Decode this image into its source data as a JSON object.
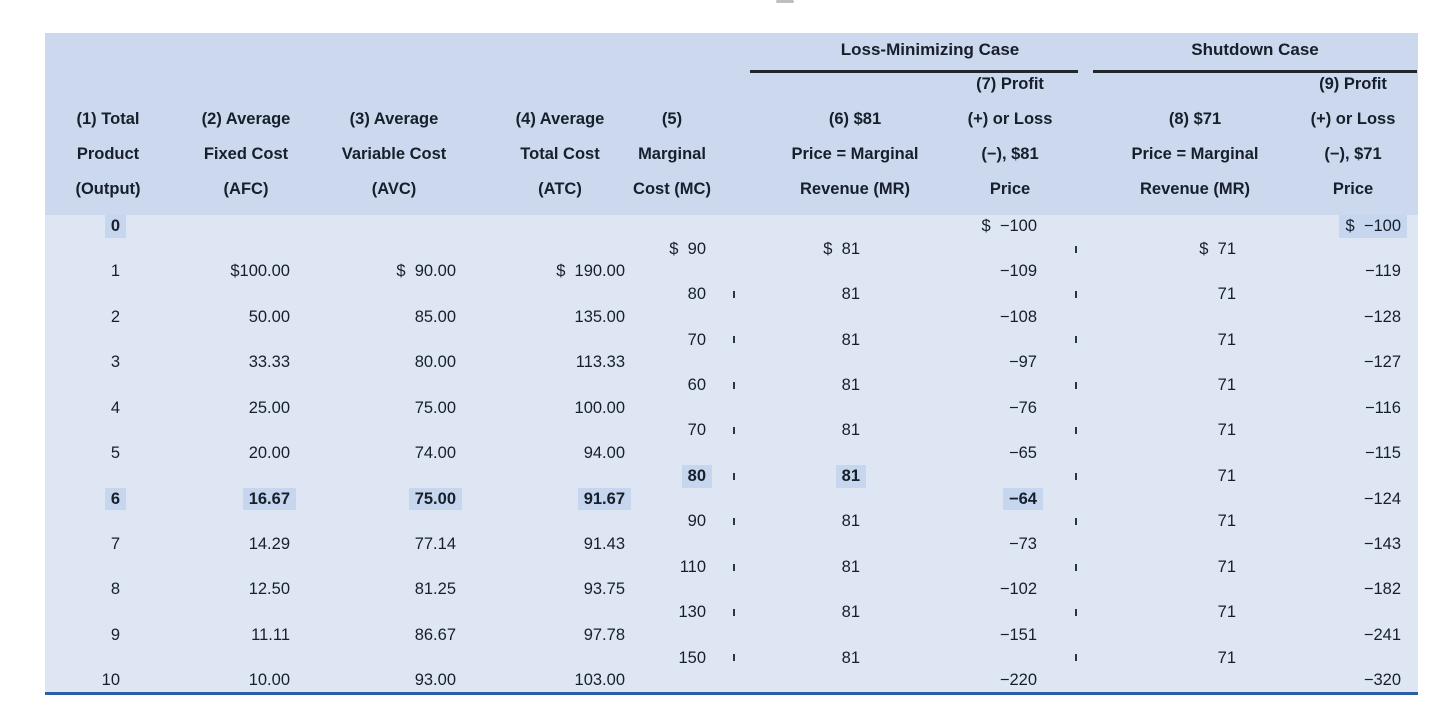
{
  "table": {
    "group_headers": [
      "Loss-Minimizing Case",
      "Shutdown Case"
    ],
    "column_headers": [
      [
        "(1) Total",
        "Product",
        "(Output)"
      ],
      [
        "(2) Average",
        "Fixed Cost",
        "(AFC)"
      ],
      [
        "(3) Average",
        "Variable Cost",
        "(AVC)"
      ],
      [
        "(4) Average",
        "Total Cost",
        "(ATC)"
      ],
      [
        "(5)",
        "Marginal",
        "Cost (MC)"
      ],
      [
        "(6) $81",
        "Price = Marginal",
        "Revenue (MR)"
      ],
      [
        "(7) Profit",
        "(+) or Loss",
        "(−), $81",
        "Price"
      ],
      [
        "(8) $71",
        "Price = Marginal",
        "Revenue (MR)"
      ],
      [
        "(9) Profit",
        "(+) or Loss",
        "(−), $71",
        "Price"
      ]
    ],
    "lines": [
      {
        "cells": {
          "1": {
            "t": "0",
            "b": true,
            "h": true
          },
          "7": {
            "t": "$  −100"
          },
          "9": {
            "t": "$  −100",
            "h": true
          }
        }
      },
      {
        "cells": {
          "5": {
            "t": "$  90"
          },
          "6": {
            "t": "$  81"
          },
          "8": {
            "t": "$  71"
          }
        },
        "tick_right": true
      },
      {
        "cells": {
          "1": {
            "t": "1"
          },
          "2": {
            "t": "$100.00"
          },
          "3": {
            "t": "$  90.00"
          },
          "4": {
            "t": "$  190.00"
          },
          "7": {
            "t": "−109"
          },
          "9": {
            "t": "−119"
          }
        }
      },
      {
        "cells": {
          "5": {
            "t": "80"
          },
          "6": {
            "t": "81"
          },
          "8": {
            "t": "71"
          }
        },
        "tick_left": true,
        "tick_right": true
      },
      {
        "cells": {
          "1": {
            "t": "2"
          },
          "2": {
            "t": "50.00"
          },
          "3": {
            "t": "85.00"
          },
          "4": {
            "t": "135.00"
          },
          "7": {
            "t": "−108"
          },
          "9": {
            "t": "−128"
          }
        }
      },
      {
        "cells": {
          "5": {
            "t": "70"
          },
          "6": {
            "t": "81"
          },
          "8": {
            "t": "71"
          }
        },
        "tick_left": true,
        "tick_right": true
      },
      {
        "cells": {
          "1": {
            "t": "3"
          },
          "2": {
            "t": "33.33"
          },
          "3": {
            "t": "80.00"
          },
          "4": {
            "t": "113.33"
          },
          "7": {
            "t": "−97"
          },
          "9": {
            "t": "−127"
          }
        }
      },
      {
        "cells": {
          "5": {
            "t": "60"
          },
          "6": {
            "t": "81"
          },
          "8": {
            "t": "71"
          }
        },
        "tick_left": true,
        "tick_right": true
      },
      {
        "cells": {
          "1": {
            "t": "4"
          },
          "2": {
            "t": "25.00"
          },
          "3": {
            "t": "75.00"
          },
          "4": {
            "t": "100.00"
          },
          "7": {
            "t": "−76"
          },
          "9": {
            "t": "−116"
          }
        }
      },
      {
        "cells": {
          "5": {
            "t": "70"
          },
          "6": {
            "t": "81"
          },
          "8": {
            "t": "71"
          }
        },
        "tick_left": true,
        "tick_right": true
      },
      {
        "cells": {
          "1": {
            "t": "5"
          },
          "2": {
            "t": "20.00"
          },
          "3": {
            "t": "74.00"
          },
          "4": {
            "t": "94.00"
          },
          "7": {
            "t": "−65"
          },
          "9": {
            "t": "−115"
          }
        }
      },
      {
        "cells": {
          "5": {
            "t": "80",
            "b": true,
            "h": true
          },
          "6": {
            "t": "81",
            "b": true,
            "h": true
          },
          "8": {
            "t": "71"
          }
        },
        "tick_left": true,
        "tick_right": true
      },
      {
        "cells": {
          "1": {
            "t": "6",
            "b": true,
            "h": true
          },
          "2": {
            "t": "16.67",
            "b": true,
            "h": true
          },
          "3": {
            "t": "75.00",
            "b": true,
            "h": true
          },
          "4": {
            "t": "91.67",
            "b": true,
            "h": true
          },
          "7": {
            "t": "−64",
            "b": true,
            "h": true
          },
          "9": {
            "t": "−124"
          }
        }
      },
      {
        "cells": {
          "5": {
            "t": "90"
          },
          "6": {
            "t": "81"
          },
          "8": {
            "t": "71"
          }
        },
        "tick_left": true,
        "tick_right": true
      },
      {
        "cells": {
          "1": {
            "t": "7"
          },
          "2": {
            "t": "14.29"
          },
          "3": {
            "t": "77.14"
          },
          "4": {
            "t": "91.43"
          },
          "7": {
            "t": "−73"
          },
          "9": {
            "t": "−143"
          }
        }
      },
      {
        "cells": {
          "5": {
            "t": "110"
          },
          "6": {
            "t": "81"
          },
          "8": {
            "t": "71"
          }
        },
        "tick_left": true,
        "tick_right": true
      },
      {
        "cells": {
          "1": {
            "t": "8"
          },
          "2": {
            "t": "12.50"
          },
          "3": {
            "t": "81.25"
          },
          "4": {
            "t": "93.75"
          },
          "7": {
            "t": "−102"
          },
          "9": {
            "t": "−182"
          }
        }
      },
      {
        "cells": {
          "5": {
            "t": "130"
          },
          "6": {
            "t": "81"
          },
          "8": {
            "t": "71"
          }
        },
        "tick_left": true,
        "tick_right": true
      },
      {
        "cells": {
          "1": {
            "t": "9"
          },
          "2": {
            "t": "11.11"
          },
          "3": {
            "t": "86.67"
          },
          "4": {
            "t": "97.78"
          },
          "7": {
            "t": "−151"
          },
          "9": {
            "t": "−241"
          }
        }
      },
      {
        "cells": {
          "5": {
            "t": "150"
          },
          "6": {
            "t": "81"
          },
          "8": {
            "t": "71"
          }
        },
        "tick_left": true,
        "tick_right": true
      },
      {
        "cells": {
          "1": {
            "t": "10"
          },
          "2": {
            "t": "10.00"
          },
          "3": {
            "t": "93.00"
          },
          "4": {
            "t": "103.00"
          },
          "7": {
            "t": "−220"
          },
          "9": {
            "t": "−320"
          }
        }
      }
    ],
    "colors": {
      "header_bg": "#cbd8ee",
      "body_bg": "#dde6f2",
      "highlight_bg": "#c6d6ee",
      "group_rule": "#21272f",
      "bottom_border": "#2d5fa7",
      "text": "#161f2b"
    }
  }
}
